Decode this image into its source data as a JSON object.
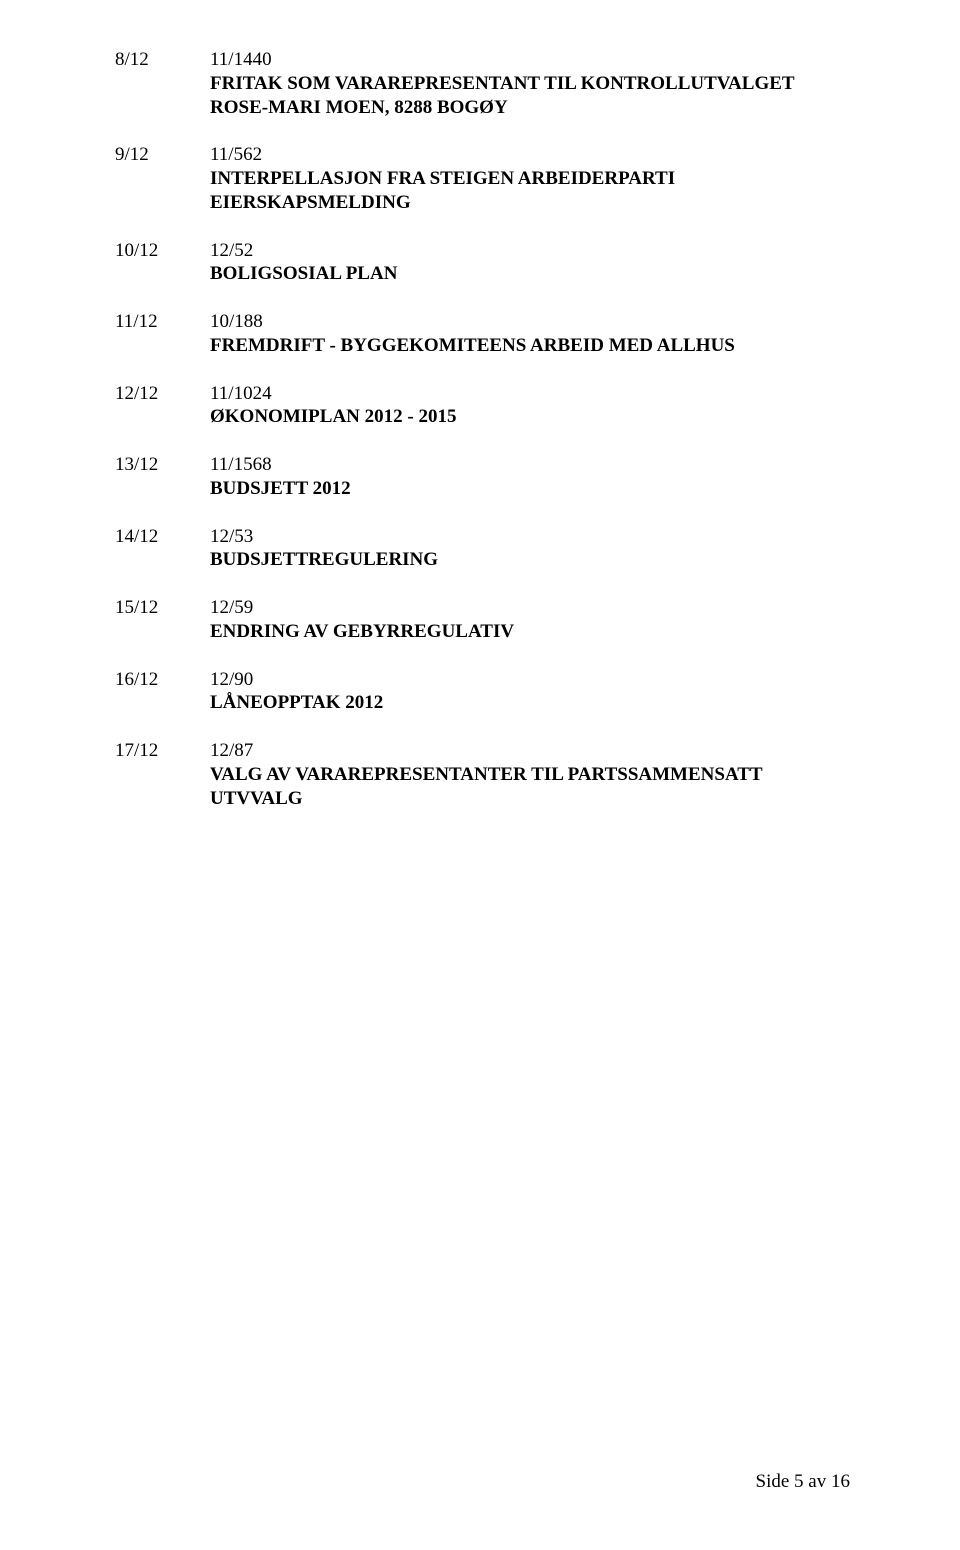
{
  "entries": [
    {
      "num": "8/12",
      "ref": "11/1440",
      "title_lines": [
        "FRITAK SOM VARAREPRESENTANT TIL KONTROLLUTVALGET",
        "ROSE-MARI MOEN, 8288 BOGØY"
      ]
    },
    {
      "num": "9/12",
      "ref": "11/562",
      "title_lines": [
        "INTERPELLASJON FRA STEIGEN ARBEIDERPARTI",
        "EIERSKAPSMELDING"
      ]
    },
    {
      "num": "10/12",
      "ref": "12/52",
      "title_lines": [
        "BOLIGSOSIAL PLAN"
      ]
    },
    {
      "num": "11/12",
      "ref": "10/188",
      "title_lines": [
        "FREMDRIFT - BYGGEKOMITEENS ARBEID MED ALLHUS"
      ]
    },
    {
      "num": "12/12",
      "ref": "11/1024",
      "title_lines": [
        "ØKONOMIPLAN 2012 - 2015"
      ]
    },
    {
      "num": "13/12",
      "ref": "11/1568",
      "title_lines": [
        "BUDSJETT 2012"
      ]
    },
    {
      "num": "14/12",
      "ref": "12/53",
      "title_lines": [
        "BUDSJETTREGULERING"
      ]
    },
    {
      "num": "15/12",
      "ref": "12/59",
      "title_lines": [
        "ENDRING AV GEBYRREGULATIV"
      ]
    },
    {
      "num": "16/12",
      "ref": "12/90",
      "title_lines": [
        "LÅNEOPPTAK 2012"
      ]
    },
    {
      "num": "17/12",
      "ref": "12/87",
      "title_lines": [
        "VALG AV VARAREPRESENTANTER TIL PARTSSAMMENSATT",
        "UTVVALG"
      ]
    }
  ],
  "footer": "Side 5 av 16"
}
